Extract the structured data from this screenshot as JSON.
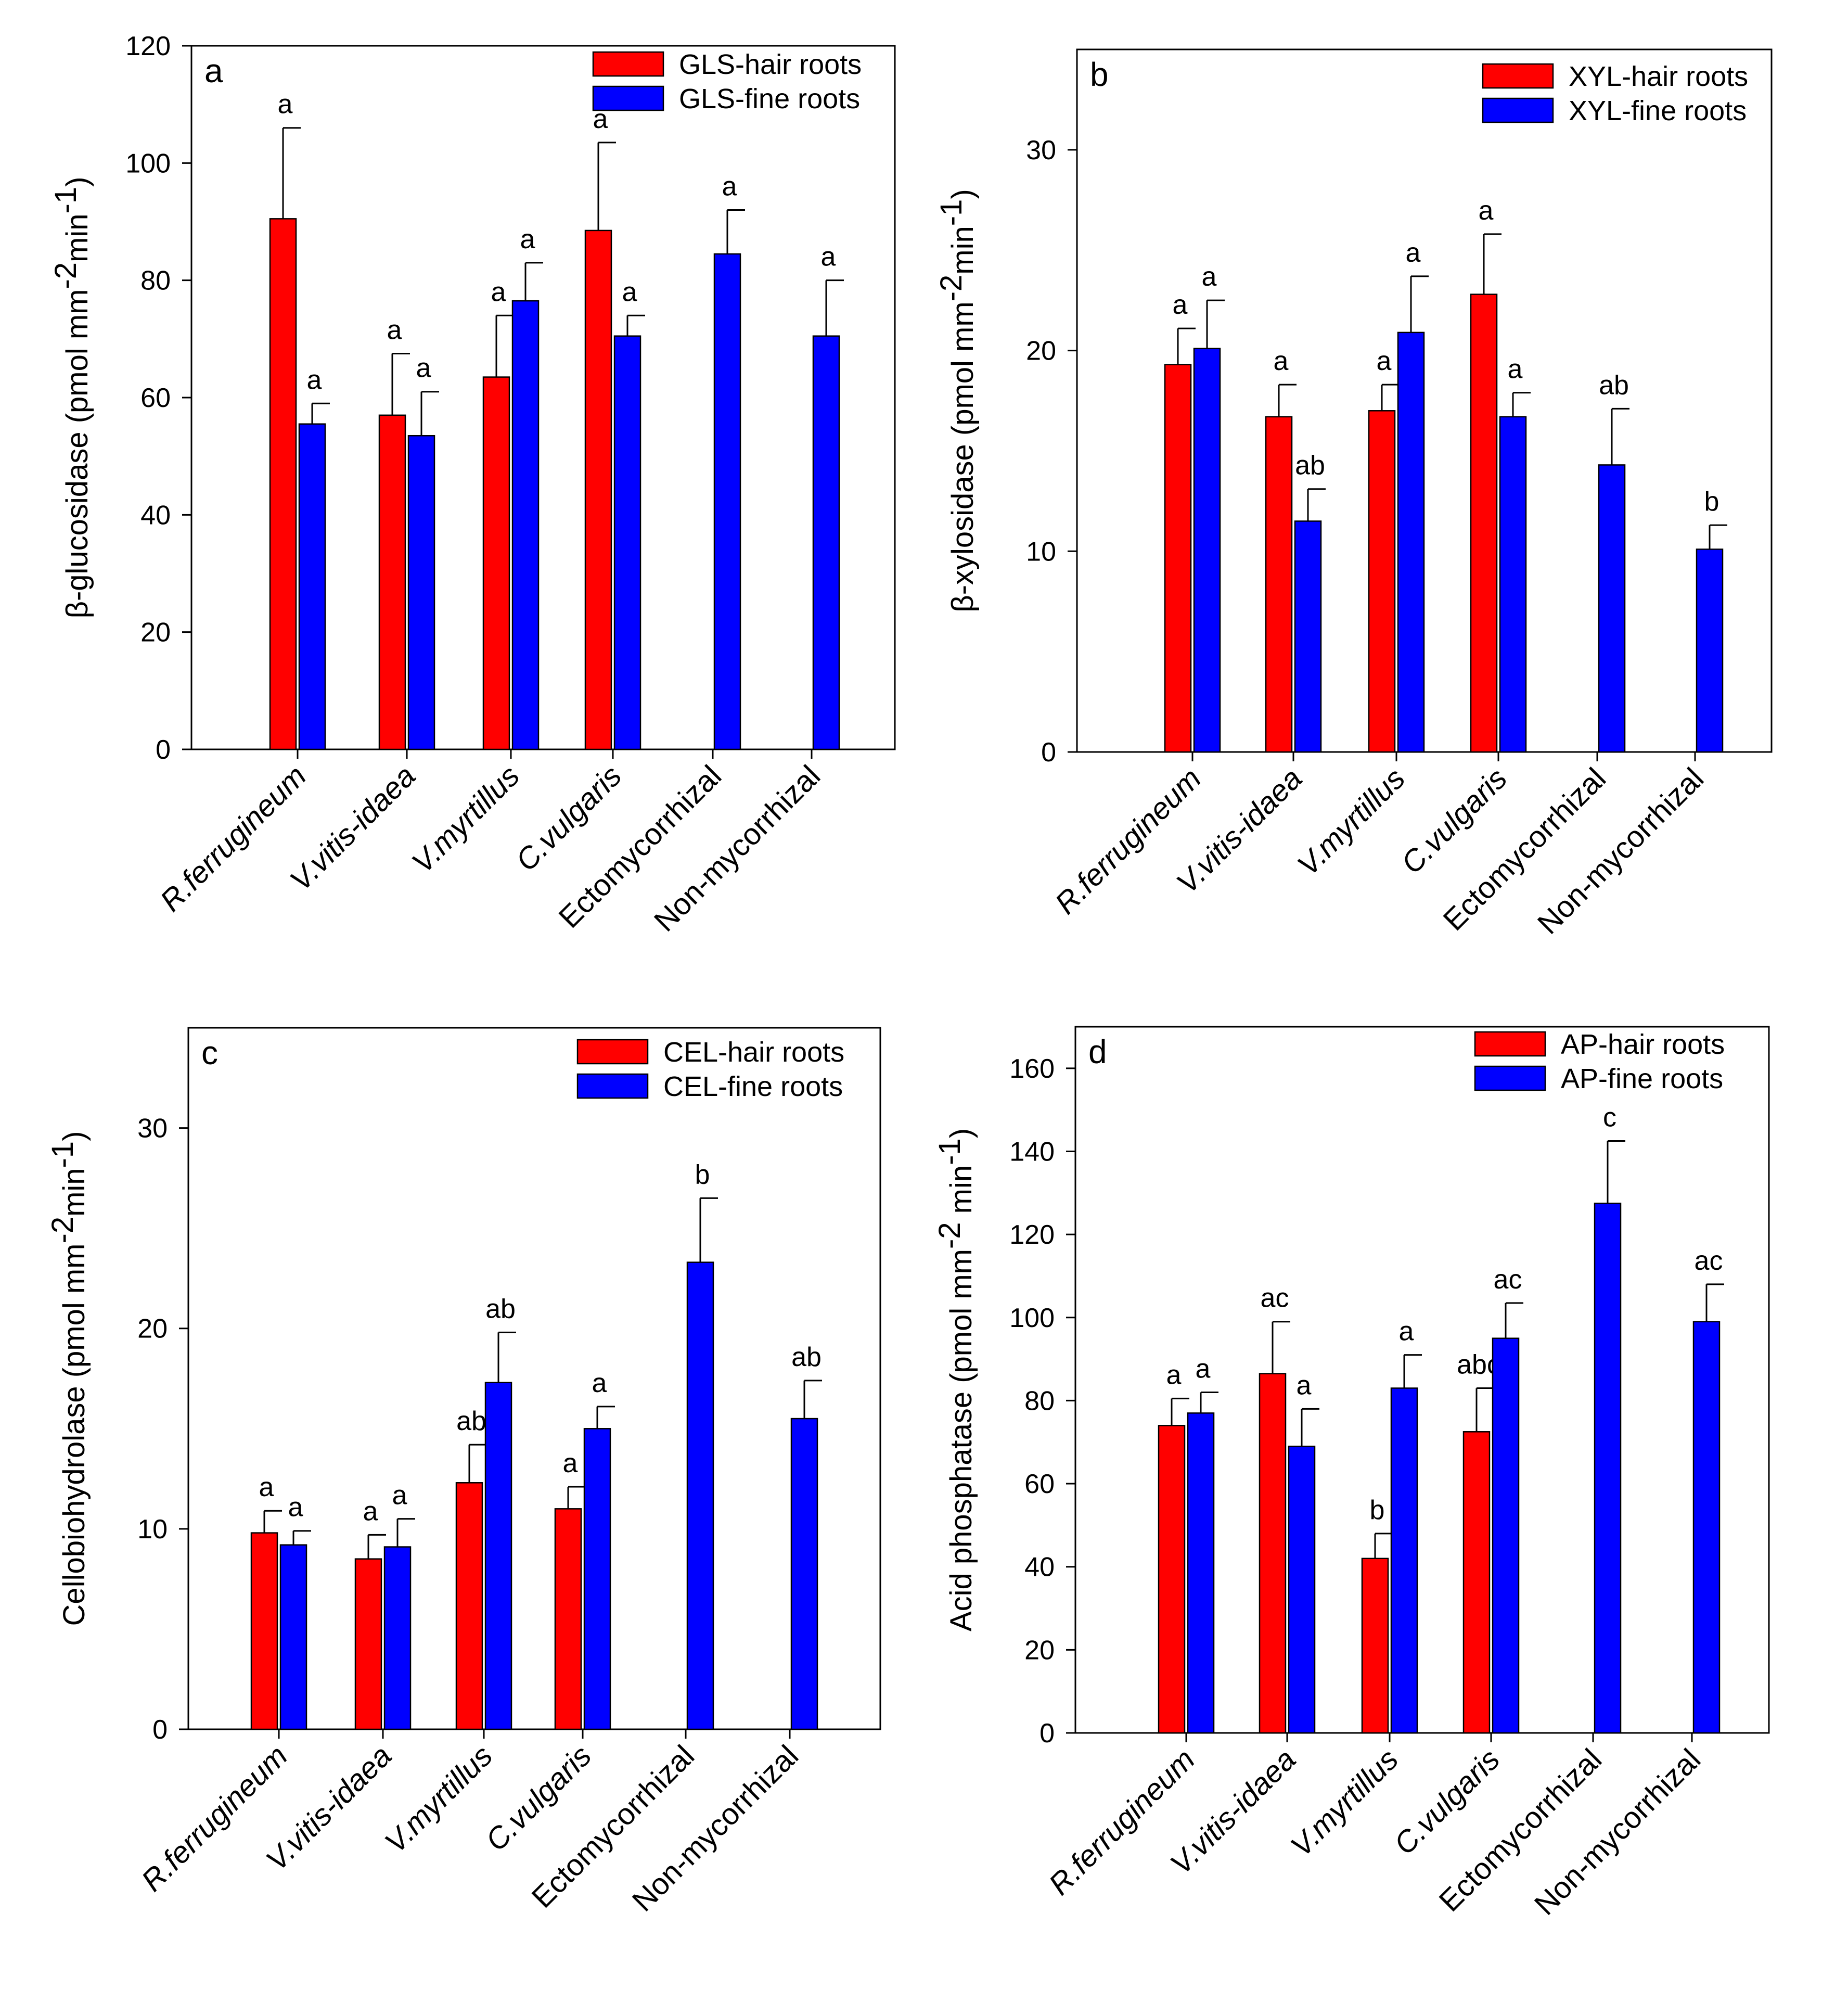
{
  "colors": {
    "hair": "#ff0000",
    "fine": "#0000ff",
    "axis": "#000000"
  },
  "chart_data": [
    {
      "type": "bar",
      "panel": "a",
      "ylabel_main": "β-glucosidase (pmol mm",
      "ylabel_sup1": "-2",
      "ylabel_mid": "min",
      "ylabel_sup2": "-1",
      "ylabel_end": ")",
      "ylim": [
        0,
        120
      ],
      "yticks": [
        0,
        20,
        40,
        60,
        80,
        100,
        120
      ],
      "categories": [
        "R.ferrugineum",
        "V.vitis-idaea",
        "V.myrtillus",
        "C.vulgaris",
        "Ectomycorrhizal",
        "Non-mycorrhizal"
      ],
      "italic": [
        true,
        true,
        true,
        true,
        false,
        false
      ],
      "series": [
        {
          "name": "GLS-hair roots",
          "color": "#ff0000",
          "values": [
            90.5,
            57,
            63.5,
            88.5,
            null,
            null
          ],
          "errors": [
            15.5,
            10.5,
            10.5,
            15,
            null,
            null
          ],
          "letters": [
            "a",
            "a",
            "a",
            "a",
            null,
            null
          ]
        },
        {
          "name": "GLS-fine roots",
          "color": "#0000ff",
          "values": [
            55.5,
            53.5,
            76.5,
            70.5,
            84.5,
            70.5
          ],
          "errors": [
            3.5,
            7.5,
            6.5,
            3.5,
            7.5,
            9.5
          ],
          "letters": [
            "a",
            "a",
            "a",
            "a",
            "a",
            "a"
          ]
        }
      ]
    },
    {
      "type": "bar",
      "panel": "b",
      "ylabel_main": "β-xylosidase (pmol mm",
      "ylabel_sup1": "-2",
      "ylabel_mid": "min",
      "ylabel_sup2": "-1",
      "ylabel_end": ")",
      "ylim": [
        0,
        35
      ],
      "yticks": [
        0,
        10,
        20,
        30
      ],
      "categories": [
        "R.ferrugineum",
        "V.vitis-idaea",
        "V.myrtillus",
        "C.vulgaris",
        "Ectomycorrhizal",
        "Non-mycorrhizal"
      ],
      "italic": [
        true,
        true,
        true,
        true,
        false,
        false
      ],
      "series": [
        {
          "name": "XYL-hair roots",
          "color": "#ff0000",
          "values": [
            19.3,
            16.7,
            17,
            22.8,
            null,
            null
          ],
          "errors": [
            1.8,
            1.6,
            1.3,
            3,
            null,
            null
          ],
          "letters": [
            "a",
            "a",
            "a",
            "a",
            null,
            null
          ]
        },
        {
          "name": "XYL-fine roots",
          "color": "#0000ff",
          "values": [
            20.1,
            11.5,
            20.9,
            16.7,
            14.3,
            10.1
          ],
          "errors": [
            2.4,
            1.6,
            2.8,
            1.2,
            2.8,
            1.2
          ],
          "letters": [
            "a",
            "ab",
            "a",
            "a",
            "ab",
            "b"
          ]
        }
      ]
    },
    {
      "type": "bar",
      "panel": "c",
      "ylabel_main": "Cellobiohydrolase (pmol mm",
      "ylabel_sup1": "-2",
      "ylabel_mid": "min",
      "ylabel_sup2": "-1",
      "ylabel_end": ")",
      "ylim": [
        0,
        35
      ],
      "yticks": [
        0,
        10,
        20,
        30
      ],
      "categories": [
        "R.ferrugineum",
        "V.vitis-idaea",
        "V.myrtillus",
        "C.vulgaris",
        "Ectomycorrhizal",
        "Non-mycorrhizal"
      ],
      "italic": [
        true,
        true,
        true,
        true,
        false,
        false
      ],
      "series": [
        {
          "name": "CEL-hair roots",
          "color": "#ff0000",
          "values": [
            9.8,
            8.5,
            12.3,
            11,
            null,
            null
          ],
          "errors": [
            1.1,
            1.2,
            1.9,
            1.1,
            null,
            null
          ],
          "letters": [
            "a",
            "a",
            "ab",
            "a",
            null,
            null
          ]
        },
        {
          "name": "CEL-fine roots",
          "color": "#0000ff",
          "values": [
            9.2,
            9.1,
            17.3,
            15,
            23.3,
            15.5
          ],
          "errors": [
            0.7,
            1.4,
            2.5,
            1.1,
            3.2,
            1.9
          ],
          "letters": [
            "a",
            "a",
            "ab",
            "a",
            "b",
            "ab"
          ]
        }
      ]
    },
    {
      "type": "bar",
      "panel": "d",
      "ylabel_main": "Acid phosphatase (pmol mm",
      "ylabel_sup1": "-2",
      "ylabel_mid": " min",
      "ylabel_sup2": "-1",
      "ylabel_end": ")",
      "ylim": [
        0,
        170
      ],
      "yticks": [
        0,
        20,
        40,
        60,
        80,
        100,
        120,
        140,
        160
      ],
      "categories": [
        "R.ferrugineum",
        "V.vitis-idaea",
        "V.myrtillus",
        "C.vulgaris",
        "Ectomycorrhizal",
        "Non-mycorrhizal"
      ],
      "italic": [
        true,
        true,
        true,
        true,
        false,
        false
      ],
      "series": [
        {
          "name": "AP-hair roots",
          "color": "#ff0000",
          "values": [
            74,
            86.5,
            42,
            72.5,
            null,
            null
          ],
          "errors": [
            6.5,
            12.5,
            6,
            10.5,
            null,
            null
          ],
          "letters": [
            "a",
            "ac",
            "b",
            "abc",
            null,
            null
          ]
        },
        {
          "name": "AP-fine roots",
          "color": "#0000ff",
          "values": [
            77,
            69,
            83,
            95,
            127.5,
            99
          ],
          "errors": [
            5,
            9,
            8,
            8.5,
            15,
            9
          ],
          "letters": [
            "a",
            "a",
            "a",
            "ac",
            "c",
            "ac"
          ]
        }
      ]
    }
  ]
}
